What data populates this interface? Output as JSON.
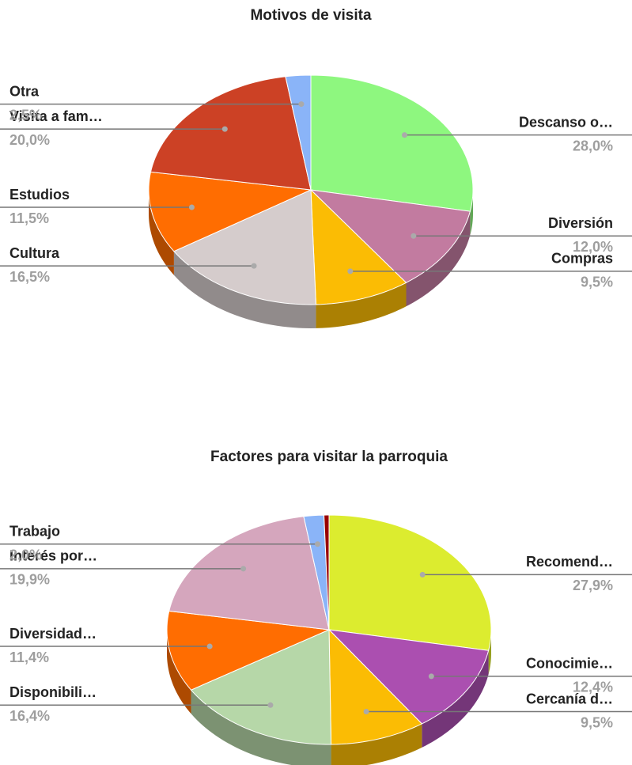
{
  "chart_data": [
    {
      "type": "pie",
      "title": "Motivos de visita",
      "categories": [
        "Descanso o…",
        "Diversión",
        "Compras",
        "Cultura",
        "Estudios",
        "Visita a fam…",
        "Otra"
      ],
      "values": [
        28.0,
        12.0,
        9.5,
        16.5,
        11.5,
        20.0,
        2.5
      ],
      "value_labels": [
        "28,0%",
        "12,0%",
        "9,5%",
        "16,5%",
        "11,5%",
        "20,0%",
        "2,5%"
      ],
      "colors": [
        "#8ef77f",
        "#c27ba0",
        "#fbbc04",
        "#d5cccc",
        "#ff6d01",
        "#cc4125",
        "#8ab4f8"
      ]
    },
    {
      "type": "pie",
      "title": "Factores para visitar la parroquia",
      "categories": [
        "Recomend…",
        "Conocimie…",
        "Cercanía d…",
        "Disponibili…",
        "Diversidad…",
        "Interés por…",
        "Trabajo",
        null
      ],
      "values": [
        27.9,
        12.4,
        9.5,
        16.4,
        11.4,
        19.9,
        2.0,
        0.5
      ],
      "value_labels": [
        "27,9%",
        "12,4%",
        "9,5%",
        "16,4%",
        "11,4%",
        "19,9%",
        "2,0%",
        null
      ],
      "colors": [
        "#dcec2f",
        "#ab4fb0",
        "#fbbc04",
        "#b6d7a8",
        "#ff6d01",
        "#d5a6bd",
        "#8ab4f8",
        "#990000"
      ]
    }
  ]
}
